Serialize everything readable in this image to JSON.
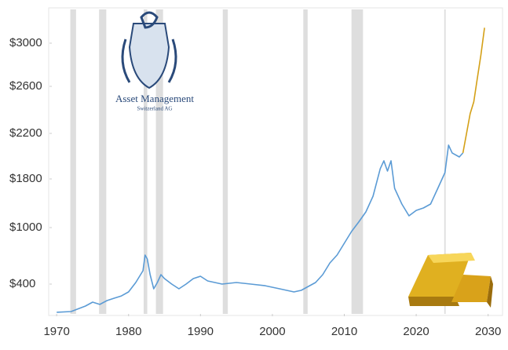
{
  "chart_data": {
    "type": "line",
    "logo": {
      "name": "Asset Management",
      "subtitle": "Switzerland AG"
    },
    "xlim": [
      1969,
      2032
    ],
    "xticks": [
      1970,
      1980,
      1990,
      2000,
      2010,
      2020,
      2030
    ],
    "ylim": [
      85,
      3200
    ],
    "yticks": [
      {
        "value": 400,
        "label": "$400"
      },
      {
        "value": 1000,
        "label": "$1000"
      },
      {
        "value": 1800,
        "label": "$1800"
      },
      {
        "value": 2200,
        "label": "$2200"
      },
      {
        "value": 2600,
        "label": "$2600"
      },
      {
        "value": 3000,
        "label": "$3000"
      }
    ],
    "recessions": [
      [
        1971.9,
        1972.7
      ],
      [
        1975.9,
        1976.9
      ],
      [
        1982.1,
        1982.6
      ],
      [
        1983.8,
        1984.8
      ],
      [
        1993.1,
        1993.8
      ],
      [
        2004.3,
        2004.9
      ],
      [
        2011.0,
        2012.6
      ],
      [
        2023.9,
        2024.1
      ]
    ],
    "recession_color": "#dedede",
    "series": [
      {
        "color": "#5b9bd5",
        "x": [
          1970,
          1972,
          1974,
          1975,
          1976,
          1977,
          1978,
          1979,
          1980,
          1981,
          1982.0,
          1982.3,
          1982.6,
          1983,
          1983.5,
          1984,
          1984.5,
          1985,
          1986,
          1987,
          1988,
          1989,
          1990,
          1991,
          1992,
          1993,
          1995,
          1997,
          1999,
          2001,
          2003,
          2004,
          2005,
          2006,
          2007,
          2008,
          2009,
          2010,
          2011,
          2012,
          2013,
          2014,
          2015,
          2015.5,
          2016,
          2016.5,
          2017,
          2018,
          2019,
          2020,
          2021,
          2022,
          2023,
          2024,
          2024.5,
          2025,
          2026,
          2026.5
        ],
        "values": [
          102,
          110,
          168,
          209,
          185,
          226,
          251,
          275,
          317,
          417,
          542,
          708,
          667,
          500,
          350,
          417,
          500,
          458,
          400,
          350,
          400,
          458,
          483,
          433,
          417,
          400,
          417,
          400,
          383,
          350,
          317,
          334,
          375,
          417,
          500,
          625,
          708,
          833,
          958,
          1090,
          1258,
          1516,
          1890,
          1959,
          1869,
          1959,
          1645,
          1387,
          1193,
          1283,
          1322,
          1387,
          1645,
          1855,
          2097,
          2028,
          1993,
          2028
        ]
      },
      {
        "color": "#d4a017",
        "x": [
          2026.5,
          2027,
          2027.5,
          2028,
          2028.5,
          2029,
          2029.5
        ],
        "values": [
          2028,
          2200,
          2367,
          2467,
          2673,
          2891,
          3145
        ]
      }
    ]
  }
}
